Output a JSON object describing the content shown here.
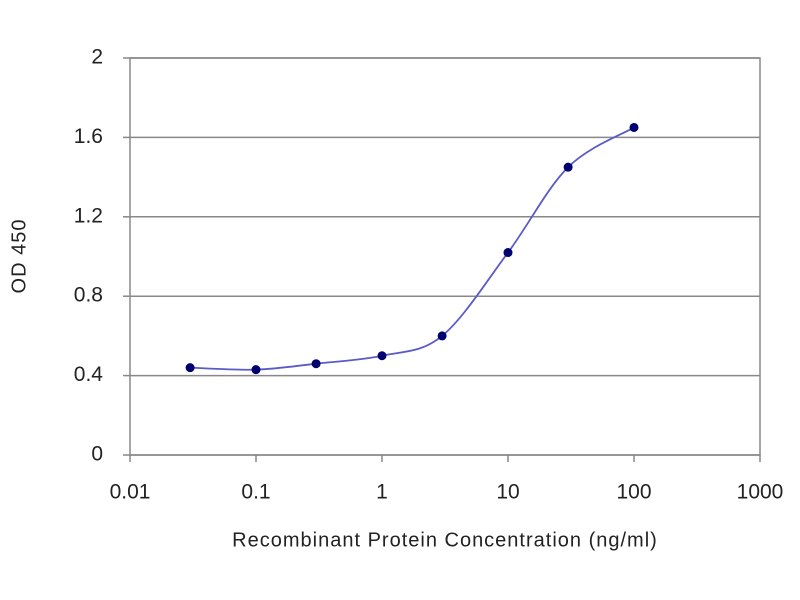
{
  "chart_data": {
    "type": "line",
    "x_label": "Recombinant Protein Concentration (ng/ml)",
    "y_label": "OD 450",
    "x": [
      0.03,
      0.1,
      0.3,
      1,
      3,
      10,
      30,
      100
    ],
    "series": [
      {
        "color": "#5b5bc8",
        "marker_color": "#000070",
        "values": [
          0.44,
          0.43,
          0.46,
          0.5,
          0.6,
          1.02,
          1.45,
          1.65
        ]
      }
    ],
    "x_log": true,
    "xlim": [
      0.01,
      1000
    ],
    "xticks": [
      0.01,
      0.1,
      1,
      10,
      100,
      1000
    ],
    "ylim": [
      0,
      2
    ],
    "yticks": [
      0,
      0.4,
      0.8,
      1.2,
      1.6,
      2
    ],
    "grid": true
  }
}
